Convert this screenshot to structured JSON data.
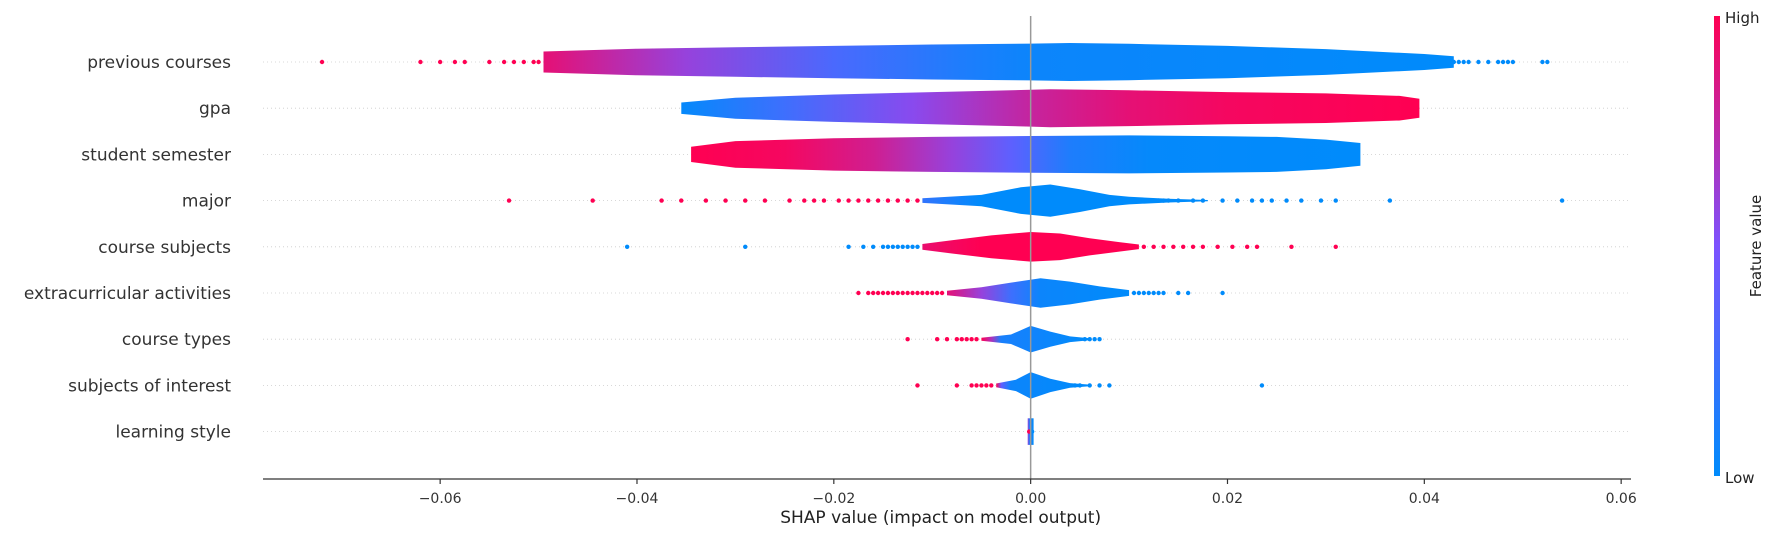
{
  "chart_data": {
    "type": "violin",
    "xlabel": "SHAP value (impact on model output)",
    "xlim": [
      -0.078,
      0.061
    ],
    "xticks": [
      "−0.06",
      "−0.04",
      "−0.02",
      "0.00",
      "0.02",
      "0.04",
      "0.06"
    ],
    "xtick_values": [
      -0.06,
      -0.04,
      -0.02,
      0.0,
      0.02,
      0.04,
      0.06
    ],
    "colorbar": {
      "title": "Feature value",
      "high_label": "High",
      "low_label": "Low",
      "high_color": "#ff0052",
      "low_color": "#008bfb"
    },
    "features": [
      {
        "name": "previous courses",
        "profile": [
          [
            -0.0495,
            0.55
          ],
          [
            -0.04,
            0.7
          ],
          [
            -0.03,
            0.78
          ],
          [
            -0.02,
            0.85
          ],
          [
            -0.01,
            0.92
          ],
          [
            0.0,
            0.97
          ],
          [
            0.004,
            1.0
          ],
          [
            0.01,
            0.96
          ],
          [
            0.02,
            0.85
          ],
          [
            0.03,
            0.68
          ],
          [
            0.04,
            0.42
          ],
          [
            0.043,
            0.3
          ]
        ],
        "colors": [
          [
            -0.0495,
            0.9
          ],
          [
            -0.035,
            0.6
          ],
          [
            -0.02,
            0.3
          ],
          [
            -0.007,
            0.12
          ],
          [
            0.0,
            0.05
          ],
          [
            0.043,
            0.0
          ]
        ],
        "dots_high": [
          -0.072,
          -0.062,
          -0.06,
          -0.0585,
          -0.0575,
          -0.055,
          -0.0535,
          -0.0525,
          -0.0515,
          -0.0505,
          -0.05
        ],
        "dots_low": [
          0.043,
          0.0435,
          0.044,
          0.0445,
          0.0455,
          0.0465,
          0.0475,
          0.048,
          0.0485,
          0.049,
          0.052,
          0.0525
        ]
      },
      {
        "name": "gpa",
        "profile": [
          [
            -0.0355,
            0.3
          ],
          [
            -0.03,
            0.55
          ],
          [
            -0.02,
            0.72
          ],
          [
            -0.01,
            0.85
          ],
          [
            0.0,
            0.97
          ],
          [
            0.002,
            1.0
          ],
          [
            0.01,
            0.94
          ],
          [
            0.02,
            0.85
          ],
          [
            0.03,
            0.78
          ],
          [
            0.0375,
            0.65
          ],
          [
            0.0395,
            0.5
          ]
        ],
        "colors": [
          [
            -0.0355,
            0.02
          ],
          [
            -0.025,
            0.25
          ],
          [
            -0.012,
            0.55
          ],
          [
            0.0,
            0.78
          ],
          [
            0.01,
            0.9
          ],
          [
            0.02,
            0.96
          ],
          [
            0.0395,
            1.0
          ]
        ]
      },
      {
        "name": "student semester",
        "profile": [
          [
            -0.0345,
            0.4
          ],
          [
            -0.03,
            0.7
          ],
          [
            -0.02,
            0.85
          ],
          [
            -0.01,
            0.92
          ],
          [
            0.0,
            0.97
          ],
          [
            0.01,
            1.0
          ],
          [
            0.02,
            0.95
          ],
          [
            0.025,
            0.92
          ],
          [
            0.03,
            0.78
          ],
          [
            0.0335,
            0.6
          ]
        ],
        "colors": [
          [
            -0.0345,
            1.0
          ],
          [
            -0.025,
            0.96
          ],
          [
            -0.016,
            0.82
          ],
          [
            -0.008,
            0.6
          ],
          [
            -0.002,
            0.38
          ],
          [
            0.004,
            0.12
          ],
          [
            0.012,
            0.02
          ],
          [
            0.0335,
            0.0
          ]
        ]
      },
      {
        "name": "major",
        "profile": [
          [
            -0.011,
            0.12
          ],
          [
            -0.005,
            0.3
          ],
          [
            -0.001,
            0.7
          ],
          [
            0.002,
            0.85
          ],
          [
            0.005,
            0.6
          ],
          [
            0.008,
            0.3
          ],
          [
            0.01,
            0.2
          ],
          [
            0.014,
            0.1
          ],
          [
            0.018,
            0.03
          ]
        ],
        "colors": [
          [
            -0.011,
            0.2
          ],
          [
            -0.005,
            0.0
          ],
          [
            0.018,
            0.0
          ]
        ],
        "dots_high": [
          -0.053,
          -0.0445,
          -0.0375,
          -0.0355,
          -0.033,
          -0.031,
          -0.029,
          -0.027,
          -0.0245,
          -0.023,
          -0.022,
          -0.021,
          -0.0195,
          -0.0185,
          -0.0175,
          -0.0165,
          -0.0155,
          -0.0145,
          -0.0135,
          -0.0125,
          -0.0115
        ],
        "dots_low": [
          0.011,
          0.012,
          0.013,
          0.0135,
          0.014,
          0.015,
          0.0165,
          0.0175,
          0.0195,
          0.021,
          0.0225,
          0.0235,
          0.0245,
          0.026,
          0.0275,
          0.0295,
          0.031,
          0.0365,
          0.054
        ]
      },
      {
        "name": "course subjects",
        "profile": [
          [
            -0.011,
            0.15
          ],
          [
            -0.008,
            0.35
          ],
          [
            -0.004,
            0.6
          ],
          [
            0.0,
            0.78
          ],
          [
            0.003,
            0.7
          ],
          [
            0.006,
            0.45
          ],
          [
            0.009,
            0.25
          ],
          [
            0.011,
            0.12
          ]
        ],
        "colors": [
          [
            -0.011,
            0.92
          ],
          [
            -0.005,
            1.0
          ],
          [
            0.011,
            1.0
          ]
        ],
        "dots_low": [
          -0.041,
          -0.029,
          -0.0185,
          -0.017,
          -0.016,
          -0.015,
          -0.0145,
          -0.014,
          -0.0135,
          -0.013,
          -0.0125,
          -0.012,
          -0.0115
        ],
        "dots_high": [
          0.0115,
          0.0125,
          0.0135,
          0.0145,
          0.0155,
          0.0165,
          0.0175,
          0.019,
          0.0205,
          0.022,
          0.023,
          0.0265,
          0.031
        ]
      },
      {
        "name": "extracurricular activities",
        "profile": [
          [
            -0.0085,
            0.12
          ],
          [
            -0.005,
            0.3
          ],
          [
            -0.002,
            0.55
          ],
          [
            0.001,
            0.78
          ],
          [
            0.004,
            0.6
          ],
          [
            0.007,
            0.35
          ],
          [
            0.01,
            0.15
          ]
        ],
        "colors": [
          [
            -0.0085,
            0.9
          ],
          [
            -0.005,
            0.6
          ],
          [
            -0.002,
            0.25
          ],
          [
            0.001,
            0.05
          ],
          [
            0.01,
            0.0
          ]
        ],
        "dots_high": [
          -0.0175,
          -0.0165,
          -0.016,
          -0.0155,
          -0.015,
          -0.0145,
          -0.014,
          -0.0135,
          -0.013,
          -0.0125,
          -0.012,
          -0.0115,
          -0.011,
          -0.0105,
          -0.01,
          -0.0095,
          -0.009
        ],
        "dots_low": [
          0.0105,
          0.011,
          0.0115,
          0.012,
          0.0125,
          0.013,
          0.0135,
          0.015,
          0.016,
          0.0195
        ]
      },
      {
        "name": "course types",
        "profile": [
          [
            -0.005,
            0.08
          ],
          [
            -0.002,
            0.25
          ],
          [
            0.0,
            0.7
          ],
          [
            0.002,
            0.4
          ],
          [
            0.004,
            0.15
          ],
          [
            0.006,
            0.05
          ]
        ],
        "colors": [
          [
            -0.005,
            1.0
          ],
          [
            -0.004,
            0.7
          ],
          [
            -0.003,
            0.1
          ],
          [
            0.006,
            0.0
          ]
        ],
        "dots_high": [
          -0.0125,
          -0.0095,
          -0.0085,
          -0.0075,
          -0.007,
          -0.0065,
          -0.006,
          -0.0055
        ],
        "dots_low": [
          0.0055,
          0.006,
          0.0065,
          0.007
        ]
      },
      {
        "name": "subjects of interest",
        "profile": [
          [
            -0.0035,
            0.1
          ],
          [
            -0.0015,
            0.3
          ],
          [
            0.0,
            0.7
          ],
          [
            0.002,
            0.35
          ],
          [
            0.004,
            0.12
          ],
          [
            0.006,
            0.04
          ]
        ],
        "colors": [
          [
            -0.0035,
            1.0
          ],
          [
            -0.003,
            0.4
          ],
          [
            -0.002,
            0.05
          ],
          [
            0.006,
            0.0
          ]
        ],
        "dots_high": [
          -0.0115,
          -0.0075,
          -0.006,
          -0.0055,
          -0.005,
          -0.0045,
          -0.004
        ],
        "dots_low": [
          0.0045,
          0.005,
          0.006,
          0.007,
          0.008,
          0.0235
        ]
      },
      {
        "name": "learning style",
        "profile": [
          [
            -0.0003,
            0.7
          ],
          [
            0.0,
            0.7
          ],
          [
            0.0003,
            0.7
          ]
        ],
        "colors": [
          [
            -0.0003,
            0.6
          ],
          [
            -0.0001,
            0.1
          ],
          [
            0.0003,
            0.0
          ]
        ],
        "dots_high": [
          -0.00015
        ],
        "dots_low": [
          0.00015
        ]
      }
    ]
  }
}
